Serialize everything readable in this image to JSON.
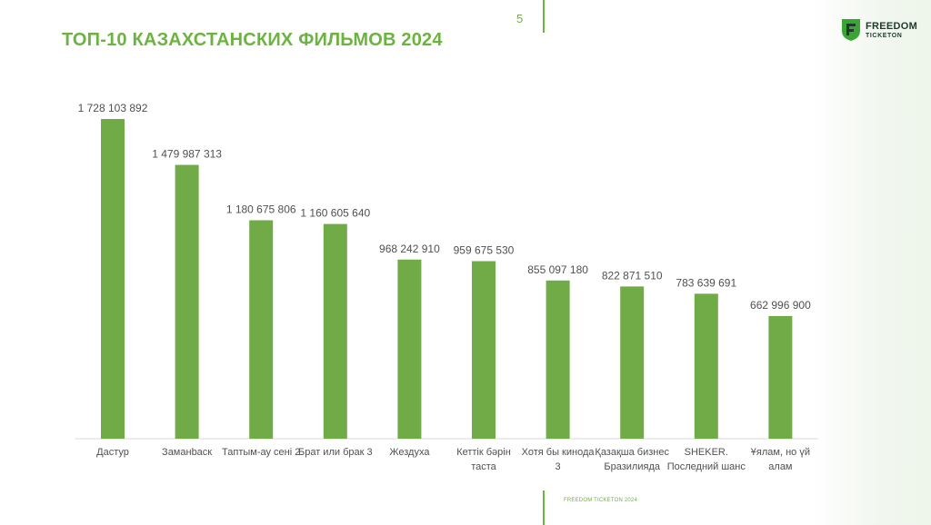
{
  "slide": {
    "title": "ТОП-10 КАЗАХСТАНСКИХ ФИЛЬМОВ 2024",
    "page_number": "5",
    "footer": "FREEDOM TICKETON 2024"
  },
  "logo": {
    "line1": "FREEDOM",
    "line2": "TICKETON",
    "icon": "freedom-shield-logo",
    "color": "#1f3a2a",
    "accent": "#3aa535"
  },
  "colors": {
    "bar": "#70ab47",
    "accent": "#6db33f",
    "text": "#505050"
  },
  "chart_data": {
    "type": "bar",
    "title": "",
    "xlabel": "",
    "ylabel": "",
    "grid": false,
    "ylim": [
      0,
      1728103892
    ],
    "categories": [
      [
        "Дастур"
      ],
      [
        "Заманbаск"
      ],
      [
        "Таптым-ау сені 2"
      ],
      [
        "Брат или брак 3"
      ],
      [
        "Жездуха"
      ],
      [
        "Кеттік бәрін",
        "таста"
      ],
      [
        "Хотя бы кинода",
        "3"
      ],
      [
        "Қазақша бизнес",
        "Бразилияда"
      ],
      [
        "SHEKER.",
        "Последний шанс"
      ],
      [
        "Ұялам, но үй",
        "алам"
      ]
    ],
    "values": [
      1728103892,
      1479987313,
      1180675806,
      1160605640,
      968242910,
      959675530,
      855097180,
      822871510,
      783639691,
      662996900
    ],
    "value_labels": [
      "1 728 103 892",
      "1 479 987 313",
      "1 180 675 806",
      "1 160 605 640",
      "968 242 910",
      "959 675 530",
      "855 097 180",
      "822 871 510",
      "783 639 691",
      "662 996 900"
    ]
  }
}
